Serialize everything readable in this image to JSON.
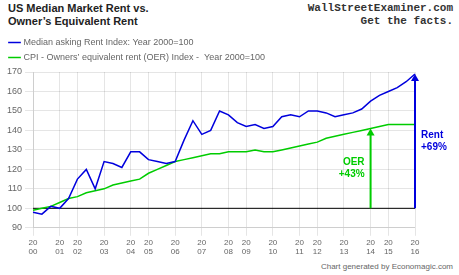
{
  "chart_data": {
    "type": "line",
    "title": "US Median Market Rent vs.\nOwner’s Equivalent Rent",
    "watermark": [
      "WallStreetExaminer.com",
      "Get the facts."
    ],
    "footer": "Chart generated by Economagic.com",
    "categories": [
      "20\n00",
      null,
      null,
      "20\n01",
      null,
      "20\n02",
      null,
      null,
      "20\n03",
      null,
      null,
      "20\n04",
      null,
      "20\n05",
      null,
      null,
      "20\n06",
      null,
      null,
      "20\n07",
      null,
      null,
      "20\n08",
      null,
      "20\n09",
      null,
      null,
      "20\n10",
      null,
      null,
      "20\n11",
      null,
      "20\n12",
      null,
      null,
      "20\n13",
      null,
      null,
      "20\n14",
      null,
      "20\n15",
      null,
      null,
      "20\n16"
    ],
    "series": [
      {
        "name": "Median asking Rent Index: Year 2000=100",
        "color": "#0000dd",
        "values": [
          98,
          97,
          101,
          100,
          105,
          115,
          120,
          110,
          124,
          123,
          121,
          129,
          129,
          125,
          124,
          123,
          124,
          135,
          145,
          138,
          140,
          150,
          148,
          144,
          142,
          143,
          141,
          142,
          147,
          148,
          147,
          150,
          150,
          149,
          147,
          148,
          149,
          151,
          155,
          158,
          160,
          162,
          165,
          169
        ],
        "arrow": {
          "at": 43,
          "from": 100,
          "label": "Rent\n+69%"
        }
      },
      {
        "name": "CPI - Owners’ equivalent rent (OER) Index -  Year 2000=100",
        "color": "#00cc00",
        "values": [
          99,
          100,
          101,
          103,
          105,
          106,
          108,
          109,
          110,
          112,
          113,
          114,
          115,
          118,
          120,
          122,
          124,
          125,
          126,
          127,
          128,
          128,
          129,
          129,
          129,
          130,
          129,
          129,
          130,
          131,
          132,
          133,
          134,
          136,
          137,
          138,
          139,
          140,
          141,
          142,
          143,
          143,
          143,
          143
        ],
        "arrow": {
          "at": 38,
          "from": 100,
          "label": "OER\n+43%"
        }
      }
    ],
    "reference_line": 100,
    "ylim": [
      90,
      170
    ],
    "yticks": [
      90,
      100,
      110,
      120,
      130,
      140,
      150,
      160,
      170
    ],
    "grid": true,
    "legend": "top"
  }
}
